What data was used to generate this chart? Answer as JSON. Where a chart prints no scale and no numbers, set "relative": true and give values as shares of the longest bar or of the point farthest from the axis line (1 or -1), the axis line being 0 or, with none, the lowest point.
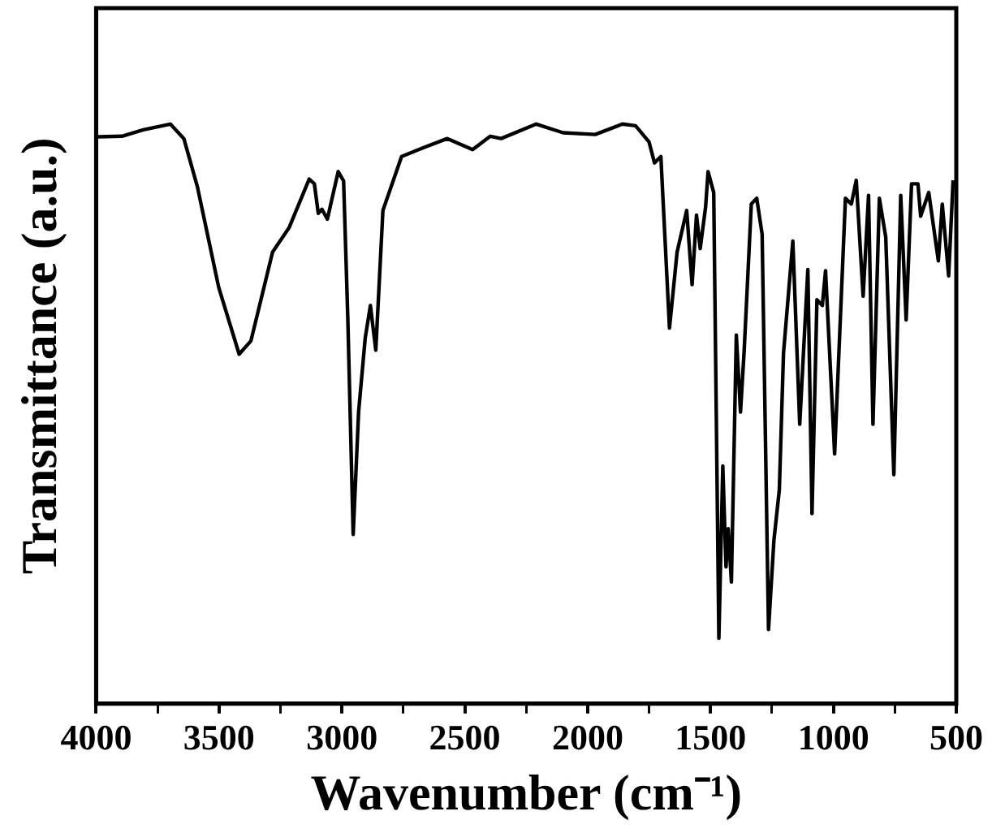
{
  "chart_data": {
    "type": "line",
    "relative": true,
    "xlabel": "Wavenumber (cm⁻¹)",
    "ylabel": "Transmittance (a.u.)",
    "xlim": [
      4000,
      500
    ],
    "xticks": [
      4000,
      {
        "value": 3750,
        "label": null
      },
      3500,
      {
        "value": 3250,
        "label": null
      },
      3000,
      {
        "value": 2750,
        "label": null
      },
      2500,
      {
        "value": 2250,
        "label": null
      },
      2000,
      {
        "value": 1750,
        "label": null
      },
      1500,
      {
        "value": 1250,
        "label": null
      },
      1000,
      {
        "value": 750,
        "label": null
      },
      500
    ],
    "grid": false,
    "legend": false,
    "marker": "none",
    "line_style": "solid",
    "series": [
      {
        "color": "#000000",
        "x": [
          3993,
          3895,
          3808,
          3698,
          3643,
          3588,
          3501,
          3418,
          3370,
          3282,
          3215,
          3133,
          3112,
          3096,
          3081,
          3059,
          3015,
          2993,
          2976,
          2954,
          2932,
          2905,
          2884,
          2862,
          2833,
          2757,
          2669,
          2571,
          2468,
          2396,
          2352,
          2209,
          2100,
          1969,
          1859,
          1805,
          1750,
          1728,
          1702,
          1667,
          1636,
          1597,
          1575,
          1557,
          1542,
          1520,
          1510,
          1487,
          1466,
          1450,
          1437,
          1428,
          1415,
          1395,
          1378,
          1363,
          1334,
          1312,
          1290,
          1264,
          1242,
          1220,
          1203,
          1165,
          1137,
          1104,
          1087,
          1067,
          1045,
          1032,
          995,
          951,
          927,
          907,
          879,
          857,
          839,
          813,
          787,
          754,
          726,
          704,
          682,
          656,
          645,
          612,
          573,
          557,
          531,
          513
        ],
        "values": [
          0.978,
          0.979,
          0.99,
          1.0,
          0.975,
          0.892,
          0.718,
          0.603,
          0.626,
          0.779,
          0.821,
          0.905,
          0.897,
          0.846,
          0.853,
          0.836,
          0.918,
          0.902,
          0.667,
          0.292,
          0.503,
          0.631,
          0.687,
          0.61,
          0.851,
          0.944,
          0.959,
          0.975,
          0.956,
          0.979,
          0.975,
          1.0,
          0.985,
          0.982,
          1.0,
          0.997,
          0.969,
          0.933,
          0.944,
          0.648,
          0.779,
          0.851,
          0.723,
          0.843,
          0.785,
          0.857,
          0.918,
          0.882,
          0.113,
          0.41,
          0.236,
          0.302,
          0.21,
          0.636,
          0.503,
          0.61,
          0.862,
          0.872,
          0.81,
          0.128,
          0.282,
          0.369,
          0.605,
          0.798,
          0.482,
          0.749,
          0.328,
          0.697,
          0.687,
          0.747,
          0.431,
          0.872,
          0.862,
          0.903,
          0.703,
          0.877,
          0.482,
          0.872,
          0.805,
          0.395,
          0.877,
          0.662,
          0.897,
          0.897,
          0.841,
          0.882,
          0.764,
          0.862,
          0.738,
          0.903
        ]
      }
    ]
  }
}
